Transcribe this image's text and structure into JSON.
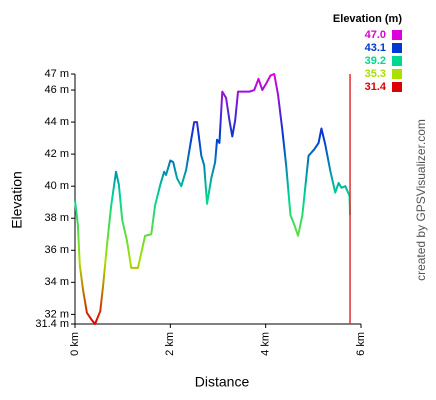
{
  "chart_data": {
    "type": "line",
    "x_label": "Distance",
    "y_label": "Elevation",
    "x": [
      0,
      0.06,
      0.1,
      0.17,
      0.25,
      0.34,
      0.42,
      0.53,
      0.59,
      0.67,
      0.76,
      0.86,
      0.92,
      0.99,
      1.09,
      1.18,
      1.32,
      1.47,
      1.6,
      1.68,
      1.79,
      1.87,
      1.91,
      2.0,
      2.06,
      2.14,
      2.23,
      2.33,
      2.42,
      2.5,
      2.56,
      2.65,
      2.71,
      2.77,
      2.86,
      2.94,
      2.98,
      3.03,
      3.09,
      3.17,
      3.24,
      3.3,
      3.36,
      3.42,
      3.66,
      3.76,
      3.85,
      3.93,
      4.01,
      4.1,
      4.18,
      4.26,
      4.35,
      4.43,
      4.52,
      4.6,
      4.68,
      4.77,
      4.9,
      5.02,
      5.11,
      5.17,
      5.25,
      5.36,
      5.46,
      5.53,
      5.59,
      5.67,
      5.76,
      5.77
    ],
    "values": [
      39.1,
      37.6,
      35.1,
      33.5,
      32.1,
      31.7,
      31.4,
      32.2,
      33.8,
      36.3,
      38.8,
      40.9,
      40.1,
      37.9,
      36.6,
      34.9,
      34.9,
      36.9,
      37.0,
      38.8,
      40.1,
      40.9,
      40.7,
      41.6,
      41.5,
      40.5,
      40.0,
      41.0,
      42.6,
      44.0,
      44.0,
      41.9,
      41.3,
      38.9,
      40.5,
      41.5,
      42.9,
      42.7,
      45.9,
      45.5,
      44.1,
      43.1,
      44.1,
      45.9,
      45.9,
      46.0,
      46.7,
      46.0,
      46.4,
      46.9,
      47.0,
      45.7,
      43.5,
      41.3,
      38.2,
      37.6,
      36.9,
      38.2,
      41.9,
      42.3,
      42.7,
      43.6,
      42.6,
      40.9,
      39.6,
      40.2,
      39.9,
      40.0,
      39.4,
      38.2
    ],
    "xlim": [
      0,
      6
    ],
    "xticks": [
      {
        "value": 0,
        "label": "0 km"
      },
      {
        "value": 2,
        "label": "2 km"
      },
      {
        "value": 4,
        "label": "4 km"
      },
      {
        "value": 6,
        "label": "6 km"
      }
    ],
    "ylim": [
      31.4,
      47
    ],
    "yticks": [
      {
        "value": 31.4,
        "label": "31.4 m"
      },
      {
        "value": 32,
        "label": "32 m"
      },
      {
        "value": 34,
        "label": "34 m"
      },
      {
        "value": 36,
        "label": "36 m"
      },
      {
        "value": 38,
        "label": "38 m"
      },
      {
        "value": 40,
        "label": "40 m"
      },
      {
        "value": 42,
        "label": "42 m"
      },
      {
        "value": 44,
        "label": "44 m"
      },
      {
        "value": 46,
        "label": "46 m"
      },
      {
        "value": 47,
        "label": "47 m"
      }
    ],
    "end_color": "#e03030",
    "legend": {
      "title": "Elevation (m)",
      "items": [
        {
          "value": 47.0,
          "label": "47.0",
          "color": "#dd00dd"
        },
        {
          "value": 43.1,
          "label": "43.1",
          "color": "#0038d0"
        },
        {
          "value": 39.2,
          "label": "39.2",
          "color": "#00d890"
        },
        {
          "value": 35.3,
          "label": "35.3",
          "color": "#a8e000"
        },
        {
          "value": 31.4,
          "label": "31.4",
          "color": "#dd0000"
        }
      ]
    }
  },
  "credit": "created by GPSVisualizer.com"
}
